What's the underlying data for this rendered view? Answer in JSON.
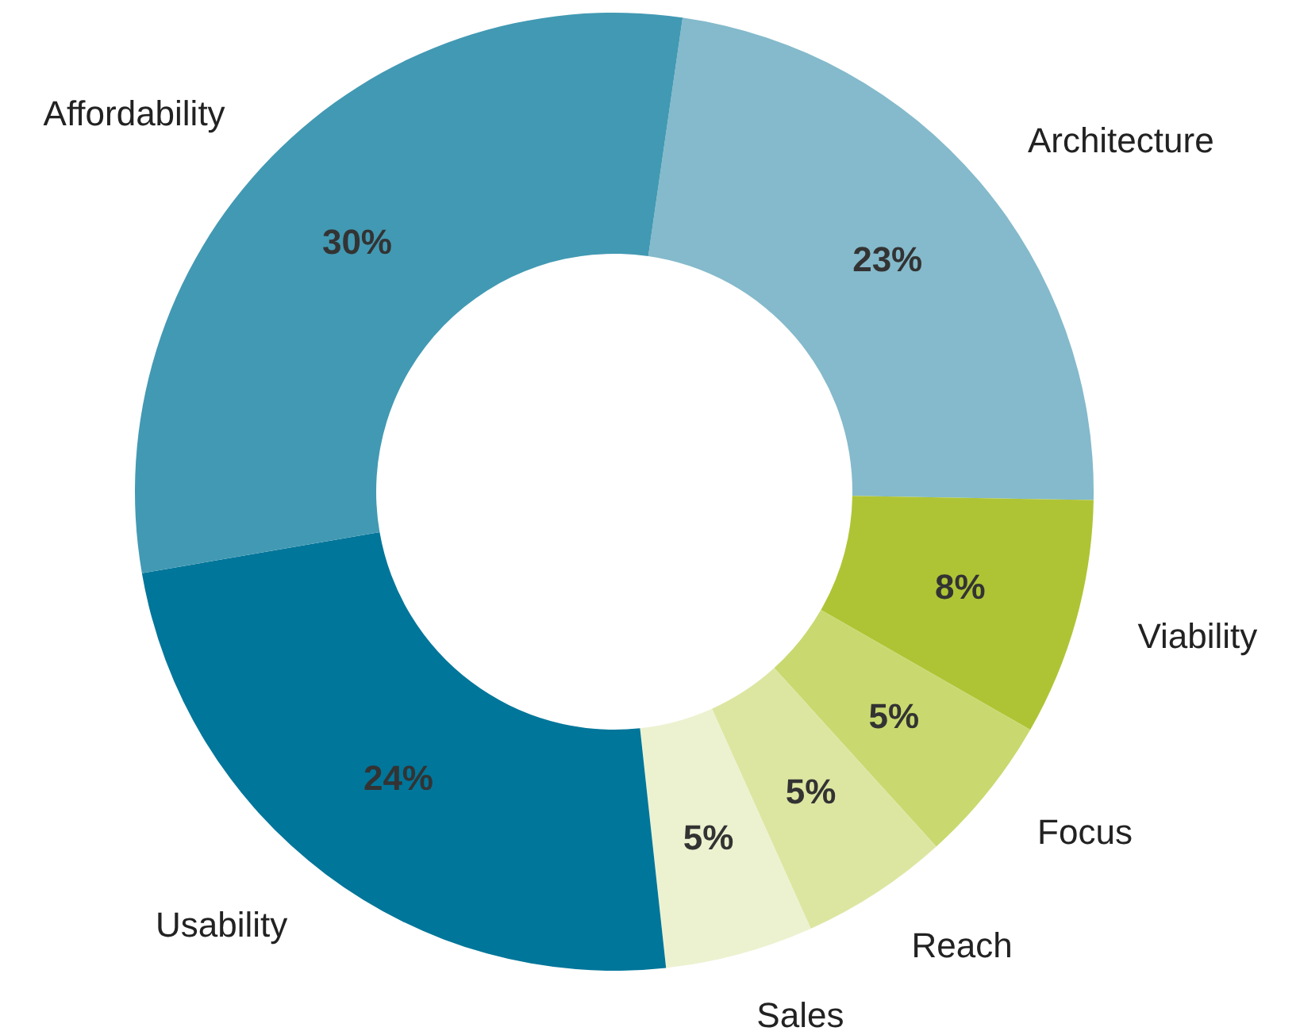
{
  "chart_data": {
    "type": "donut",
    "categories": [
      "Architecture",
      "Viability",
      "Focus",
      "Reach",
      "Sales",
      "Usability",
      "Affordability"
    ],
    "values": [
      23,
      8,
      5,
      5,
      5,
      24,
      30
    ],
    "colors": [
      "#84bacb",
      "#afc435",
      "#c9d96f",
      "#dde6a1",
      "#ecf2d0",
      "#00769a",
      "#4299b3"
    ],
    "value_labels": [
      "23%",
      "8%",
      "5%",
      "5%",
      "5%",
      "24%",
      "30%"
    ]
  }
}
